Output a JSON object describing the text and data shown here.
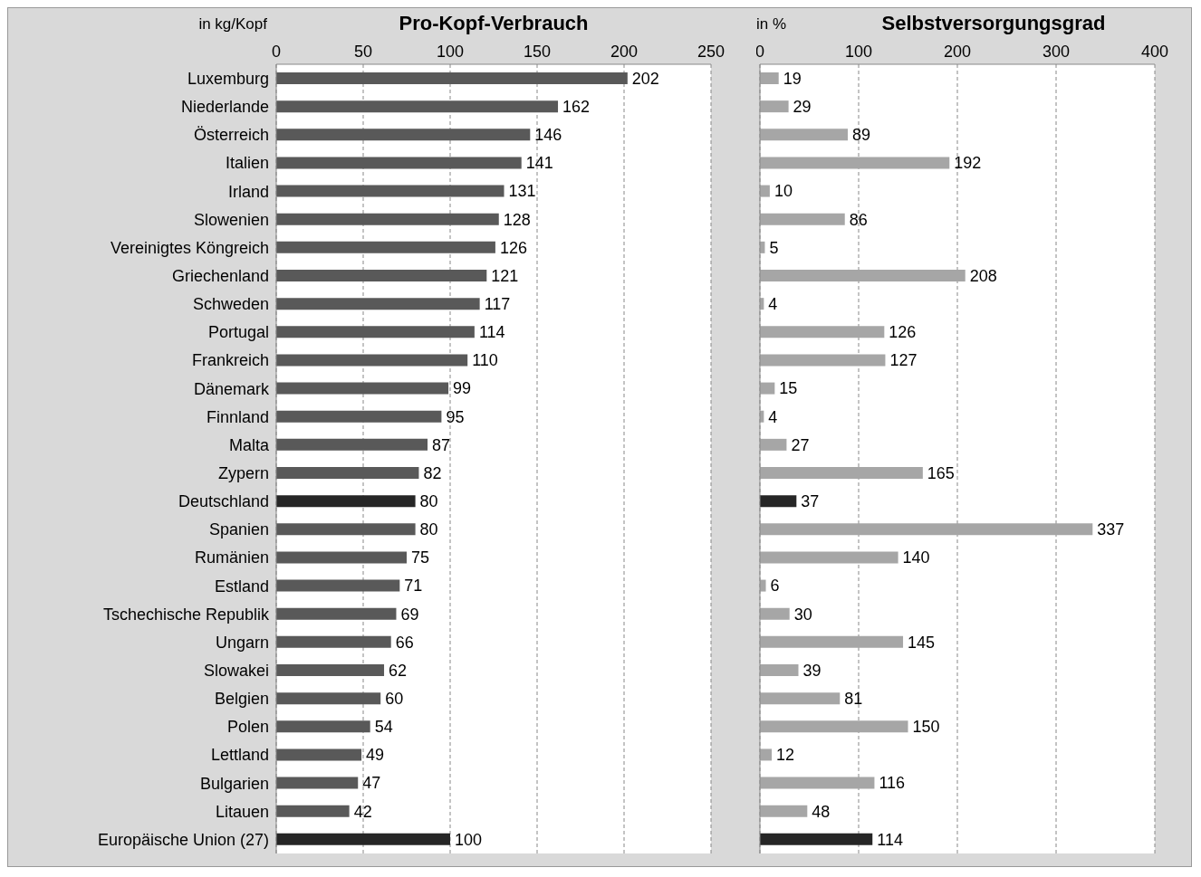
{
  "chart_data": [
    {
      "type": "bar",
      "orientation": "horizontal",
      "title": "Pro-Kopf-Verbrauch",
      "xlabel": "in kg/Kopf",
      "categories": [
        "Luxemburg",
        "Niederlande",
        "Österreich",
        "Italien",
        "Irland",
        "Slowenien",
        "Vereinigtes Köngreich",
        "Griechenland",
        "Schweden",
        "Portugal",
        "Frankreich",
        "Dänemark",
        "Finnland",
        "Malta",
        "Zypern",
        "Deutschland",
        "Spanien",
        "Rumänien",
        "Estland",
        "Tschechische Republik",
        "Ungarn",
        "Slowakei",
        "Belgien",
        "Polen",
        "Lettland",
        "Bulgarien",
        "Litauen",
        "Europäische Union (27)"
      ],
      "values": [
        202,
        162,
        146,
        141,
        131,
        128,
        126,
        121,
        117,
        114,
        110,
        99,
        95,
        87,
        82,
        80,
        80,
        75,
        71,
        69,
        66,
        62,
        60,
        54,
        49,
        47,
        42,
        100
      ],
      "colors": [
        "#595959",
        "#595959",
        "#595959",
        "#595959",
        "#595959",
        "#595959",
        "#595959",
        "#595959",
        "#595959",
        "#595959",
        "#595959",
        "#595959",
        "#595959",
        "#595959",
        "#595959",
        "#262626",
        "#595959",
        "#595959",
        "#595959",
        "#595959",
        "#595959",
        "#595959",
        "#595959",
        "#595959",
        "#595959",
        "#595959",
        "#595959",
        "#262626"
      ],
      "xlim": [
        0,
        250
      ],
      "xticks": [
        0,
        50,
        100,
        150,
        200,
        250
      ],
      "grid": "x",
      "data_labels": true
    },
    {
      "type": "bar",
      "orientation": "horizontal",
      "title": "Selbstversorgungsgrad",
      "xlabel": "in %",
      "categories": [
        null,
        null,
        null,
        null,
        null,
        null,
        null,
        null,
        null,
        null,
        null,
        null,
        null,
        null,
        null,
        null,
        null,
        null,
        null,
        null,
        null,
        null,
        null,
        null,
        null,
        null,
        null,
        null
      ],
      "values": [
        19,
        29,
        89,
        192,
        10,
        86,
        5,
        208,
        4,
        126,
        127,
        15,
        4,
        27,
        165,
        37,
        337,
        140,
        6,
        30,
        145,
        39,
        81,
        150,
        12,
        116,
        48,
        114
      ],
      "colors": [
        "#a6a6a6",
        "#a6a6a6",
        "#a6a6a6",
        "#a6a6a6",
        "#a6a6a6",
        "#a6a6a6",
        "#a6a6a6",
        "#a6a6a6",
        "#a6a6a6",
        "#a6a6a6",
        "#a6a6a6",
        "#a6a6a6",
        "#a6a6a6",
        "#a6a6a6",
        "#a6a6a6",
        "#262626",
        "#a6a6a6",
        "#a6a6a6",
        "#a6a6a6",
        "#a6a6a6",
        "#a6a6a6",
        "#a6a6a6",
        "#a6a6a6",
        "#a6a6a6",
        "#a6a6a6",
        "#a6a6a6",
        "#a6a6a6",
        "#262626"
      ],
      "xlim": [
        0,
        400
      ],
      "xticks": [
        0,
        100,
        200,
        300,
        400
      ],
      "grid": "x",
      "data_labels": true,
      "tick_labels": "x"
    }
  ]
}
